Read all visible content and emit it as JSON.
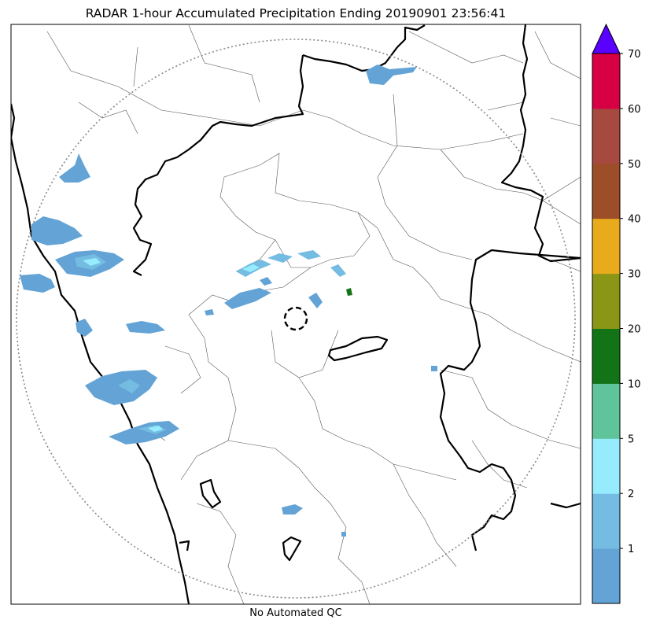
{
  "title": "RADAR 1-hour Accumulated Precipitation Ending 20190901 23:56:41",
  "footer": "No Automated QC",
  "colorbar": {
    "levels": [
      {
        "label": "",
        "color": "#63a3d5"
      },
      {
        "label": "1",
        "color": "#74bce2"
      },
      {
        "label": "2",
        "color": "#96ecfc"
      },
      {
        "label": "5",
        "color": "#5fc49a"
      },
      {
        "label": "10",
        "color": "#127417"
      },
      {
        "label": "20",
        "color": "#8b9616"
      },
      {
        "label": "30",
        "color": "#e8ab1c"
      },
      {
        "label": "40",
        "color": "#9b4e28"
      },
      {
        "label": "50",
        "color": "#a6493f"
      },
      {
        "label": "60",
        "color": "#d70044"
      },
      {
        "label": "70",
        "color": ""
      }
    ],
    "extend_color": "#5a00ff"
  }
}
